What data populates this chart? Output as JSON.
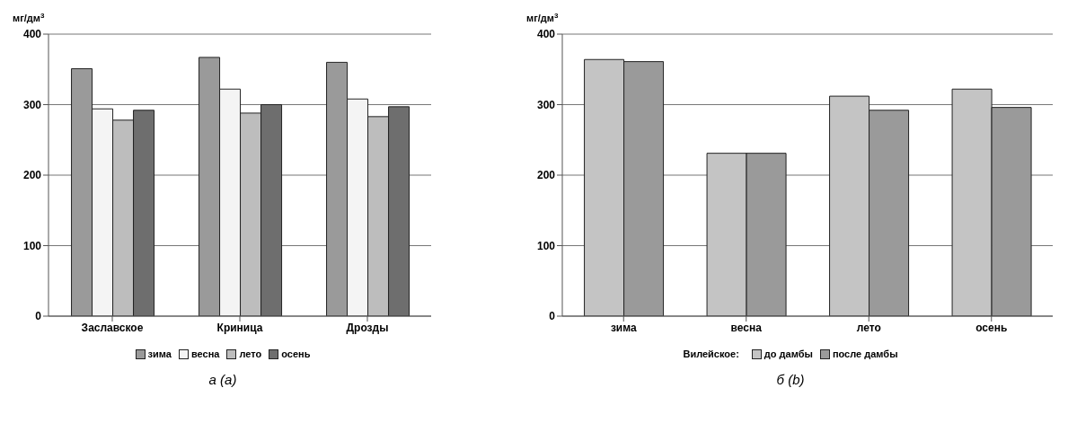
{
  "chart_data": [
    {
      "type": "bar",
      "title": "а (a)",
      "ylabel": "мг/дм$^{3}$",
      "categories": [
        "Заславское",
        "Криница",
        "Дрозды"
      ],
      "series": [
        {
          "name": "зима",
          "color": "#9a9a9a",
          "values": [
            351,
            367,
            360
          ]
        },
        {
          "name": "весна",
          "color": "#f4f4f4",
          "values": [
            294,
            322,
            308
          ]
        },
        {
          "name": "лето",
          "color": "#bdbdbd",
          "values": [
            278,
            288,
            283
          ]
        },
        {
          "name": "осень",
          "color": "#6e6e6e",
          "values": [
            292,
            300,
            297
          ]
        }
      ],
      "ylim": [
        0,
        400
      ],
      "yticks": [
        0,
        100,
        200,
        300,
        400
      ],
      "grid": "y",
      "legend": "bottom"
    },
    {
      "type": "bar",
      "title": "б (b)",
      "ylabel": "мг/дм$^{3}$",
      "legend_title": "Вилейское:",
      "categories": [
        "зима",
        "весна",
        "лето",
        "осень"
      ],
      "series": [
        {
          "name": "до дамбы",
          "color": "#c4c4c4",
          "values": [
            364,
            231,
            312,
            322
          ]
        },
        {
          "name": "после дамбы",
          "color": "#9a9a9a",
          "values": [
            361,
            231,
            292,
            296
          ]
        }
      ],
      "ylim": [
        0,
        400
      ],
      "yticks": [
        0,
        100,
        200,
        300,
        400
      ],
      "grid": "y",
      "legend": "bottom"
    }
  ]
}
